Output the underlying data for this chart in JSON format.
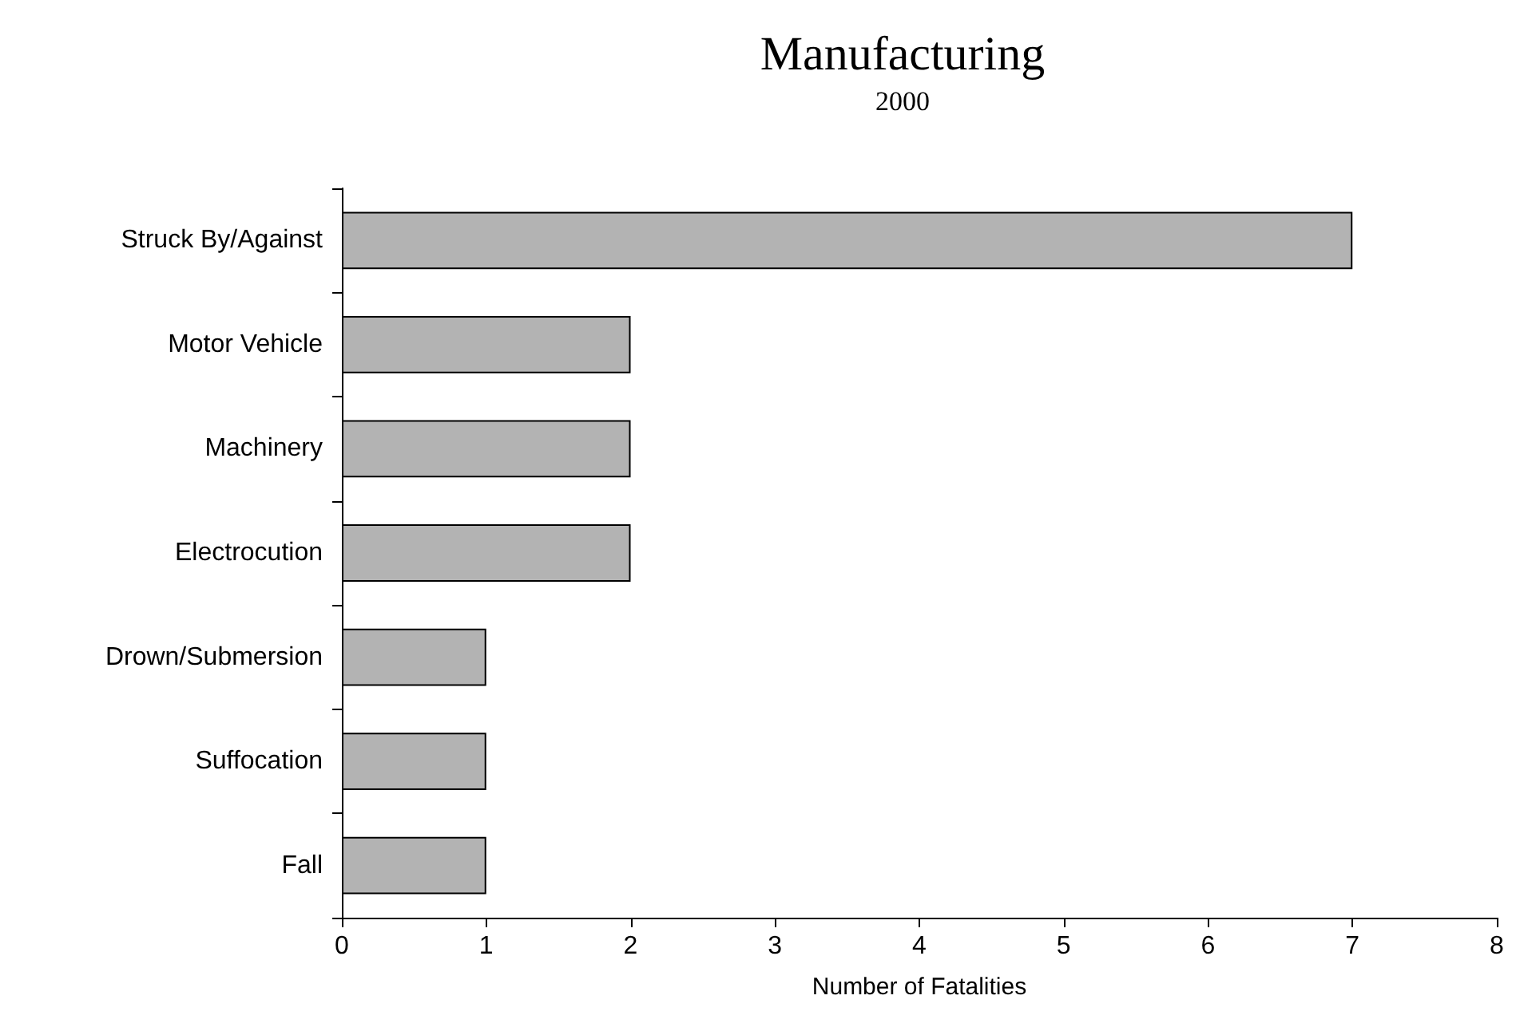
{
  "chart_data": {
    "type": "bar",
    "title": "Manufacturing",
    "subtitle": "2000",
    "xlabel": "Number of Fatalities",
    "orientation": "horizontal",
    "categories": [
      "Struck By/Against",
      "Motor Vehicle",
      "Machinery",
      "Electrocution",
      "Drown/Submersion",
      "Suffocation",
      "Fall"
    ],
    "values": [
      7,
      2,
      2,
      2,
      1,
      1,
      1
    ],
    "color": "#b3b3b3",
    "xlim": [
      0,
      8
    ],
    "xticks": [
      0,
      1,
      2,
      3,
      4,
      5,
      6,
      7,
      8
    ]
  }
}
